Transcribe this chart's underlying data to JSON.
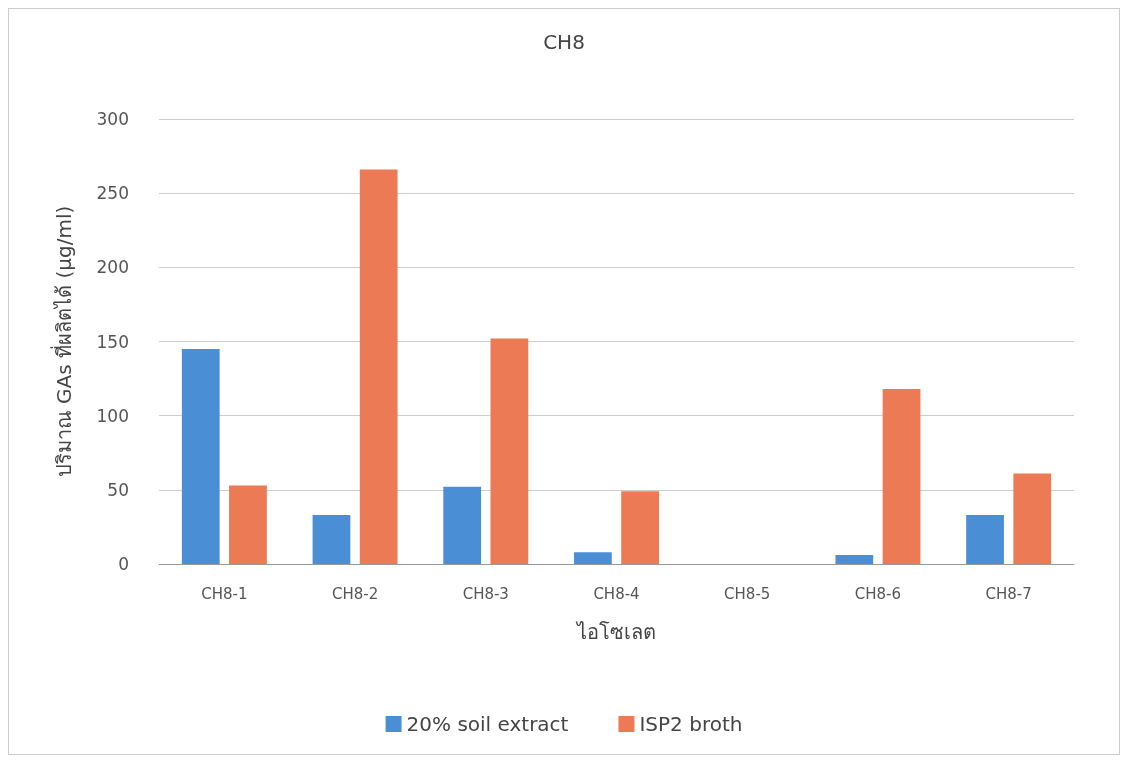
{
  "chart_data": {
    "type": "bar",
    "title": "CH8",
    "xlabel": "ไอโซเลต",
    "ylabel": "ปริมาณ GAs ที่ผลิตได้ (µg/ml)",
    "categories": [
      "CH8-1",
      "CH8-2",
      "CH8-3",
      "CH8-4",
      "CH8-5",
      "CH8-6",
      "CH8-7"
    ],
    "series": [
      {
        "name": "20% soil extract",
        "color": "#4a8fd6",
        "values": [
          145,
          33,
          52,
          8,
          0,
          6,
          33
        ]
      },
      {
        "name": "ISP2 broth",
        "color": "#ec7a55",
        "values": [
          53,
          266,
          152,
          49,
          0,
          118,
          61
        ]
      }
    ],
    "ylim": [
      0,
      300
    ],
    "yticks": [
      0,
      50,
      100,
      150,
      200,
      250,
      300
    ],
    "grid": "y",
    "legend": "bottom"
  }
}
